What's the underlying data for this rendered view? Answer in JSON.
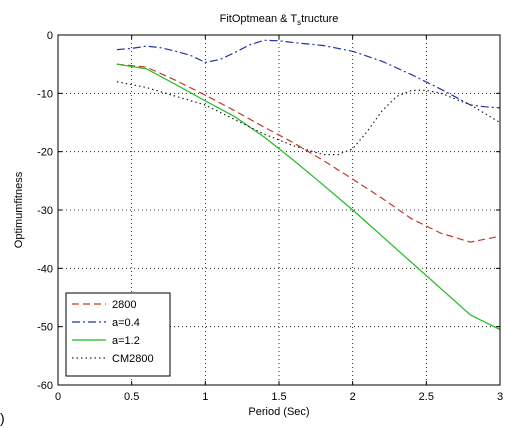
{
  "chart_data": {
    "type": "line",
    "title": {
      "main": "FitOptmean & T",
      "sub": "s",
      "rest": "tructure"
    },
    "xlabel": "Period (Sec)",
    "ylabel": "Optimumfitness",
    "xlim": [
      0,
      3
    ],
    "ylim": [
      -60,
      0
    ],
    "xticks": [
      0,
      0.5,
      1,
      1.5,
      2,
      2.5,
      3
    ],
    "xtick_labels": [
      "0",
      "0.5",
      "1",
      "1.5",
      "2",
      "2.5",
      "3"
    ],
    "yticks": [
      0,
      -10,
      -20,
      -30,
      -40,
      -50,
      -60
    ],
    "ytick_labels": [
      "0",
      "-10",
      "-20",
      "-30",
      "-40",
      "-50",
      "-60"
    ],
    "grid": true,
    "legend_position": "bottom-left",
    "series": [
      {
        "name": "2800",
        "color": "#c0392b",
        "dash": "dashed",
        "x": [
          0.4,
          0.6,
          0.8,
          1.0,
          1.2,
          1.4,
          1.6,
          1.8,
          2.0,
          2.2,
          2.4,
          2.6,
          2.8,
          3.0
        ],
        "y": [
          -5.0,
          -5.5,
          -7.8,
          -10.3,
          -13.0,
          -15.8,
          -18.5,
          -21.5,
          -24.7,
          -28.0,
          -31.5,
          -34.0,
          -35.5,
          -34.5
        ]
      },
      {
        "name": "a=0.4",
        "color": "#2233aa",
        "dash": "dashdot",
        "x": [
          0.4,
          0.5,
          0.6,
          0.7,
          0.8,
          0.9,
          1.0,
          1.1,
          1.2,
          1.3,
          1.4,
          1.5,
          1.6,
          1.8,
          2.0,
          2.2,
          2.4,
          2.6,
          2.8,
          2.9,
          3.0
        ],
        "y": [
          -2.5,
          -2.3,
          -1.9,
          -2.2,
          -2.8,
          -3.5,
          -4.7,
          -4.2,
          -3.0,
          -1.7,
          -0.9,
          -1.0,
          -1.3,
          -1.8,
          -2.8,
          -4.5,
          -6.8,
          -9.3,
          -12.0,
          -12.3,
          -12.5
        ]
      },
      {
        "name": "a=1.2",
        "color": "#22bb22",
        "dash": "solid",
        "x": [
          0.4,
          0.6,
          0.8,
          1.0,
          1.2,
          1.4,
          1.6,
          1.8,
          2.0,
          2.2,
          2.4,
          2.6,
          2.8,
          3.0
        ],
        "y": [
          -5.0,
          -5.8,
          -8.5,
          -11.3,
          -14.0,
          -17.5,
          -21.5,
          -25.7,
          -30.0,
          -34.5,
          -39.0,
          -43.5,
          -48.0,
          -50.5
        ]
      },
      {
        "name": "CM2800",
        "color": "#222222",
        "dash": "dotted",
        "x": [
          0.4,
          0.6,
          0.8,
          1.0,
          1.2,
          1.4,
          1.6,
          1.8,
          1.9,
          2.0,
          2.1,
          2.2,
          2.3,
          2.4,
          2.5,
          2.6,
          2.8,
          3.0
        ],
        "y": [
          -8.0,
          -9.0,
          -10.5,
          -12.0,
          -14.5,
          -17.0,
          -19.0,
          -20.5,
          -20.5,
          -19.5,
          -16.5,
          -13.0,
          -10.5,
          -9.5,
          -9.5,
          -10.0,
          -12.0,
          -15.0
        ]
      }
    ]
  },
  "corner_mark": ")"
}
